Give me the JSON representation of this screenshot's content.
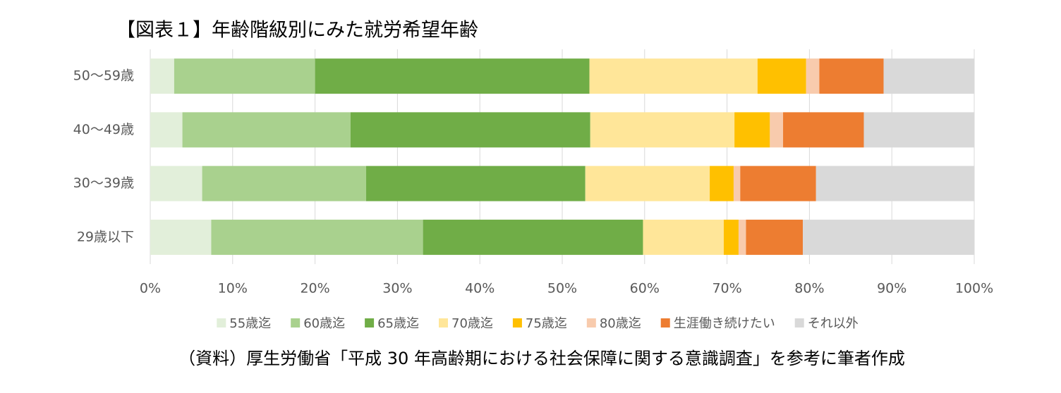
{
  "chart_data": {
    "type": "stacked-bar-horizontal",
    "title": "【図表１】年齢階級別にみた就労希望年齢",
    "source": "（資料）厚生労働省「平成 30 年高齢期における社会保障に関する意識調査」を参考に筆者作成",
    "categories": [
      "50～59歳",
      "40～49歳",
      "30～39歳",
      "29歳以下"
    ],
    "series": [
      {
        "name": "55歳迄",
        "color": "#e2efda",
        "values": [
          2.9,
          3.9,
          6.3,
          7.4
        ]
      },
      {
        "name": "60歳迄",
        "color": "#a9d18e",
        "values": [
          17.1,
          20.4,
          19.9,
          25.7
        ]
      },
      {
        "name": "65歳迄",
        "color": "#70ad47",
        "values": [
          33.3,
          29.1,
          26.6,
          26.7
        ]
      },
      {
        "name": "70歳迄",
        "color": "#ffe699",
        "values": [
          20.4,
          17.5,
          15.1,
          9.8
        ]
      },
      {
        "name": "75歳迄",
        "color": "#ffc000",
        "values": [
          5.9,
          4.3,
          2.9,
          1.8
        ]
      },
      {
        "name": "80歳迄",
        "color": "#f8cbad",
        "values": [
          1.6,
          1.6,
          0.8,
          0.9
        ]
      },
      {
        "name": "生涯働き続けたい",
        "color": "#ed7d31",
        "values": [
          7.8,
          9.8,
          9.2,
          6.9
        ]
      },
      {
        "name": "それ以外",
        "color": "#d9d9d9",
        "values": [
          11.0,
          13.4,
          19.2,
          20.8
        ]
      }
    ],
    "xlim": [
      0,
      100
    ],
    "xticks": [
      {
        "value": 0,
        "label": "0%"
      },
      {
        "value": 10,
        "label": "10%"
      },
      {
        "value": 20,
        "label": "20%"
      },
      {
        "value": 30,
        "label": "30%"
      },
      {
        "value": 40,
        "label": "40%"
      },
      {
        "value": 50,
        "label": "50%"
      },
      {
        "value": 60,
        "label": "60%"
      },
      {
        "value": 70,
        "label": "70%"
      },
      {
        "value": 80,
        "label": "80%"
      },
      {
        "value": 90,
        "label": "90%"
      },
      {
        "value": 100,
        "label": "100%"
      }
    ],
    "grid": true,
    "legend": "bottom"
  }
}
